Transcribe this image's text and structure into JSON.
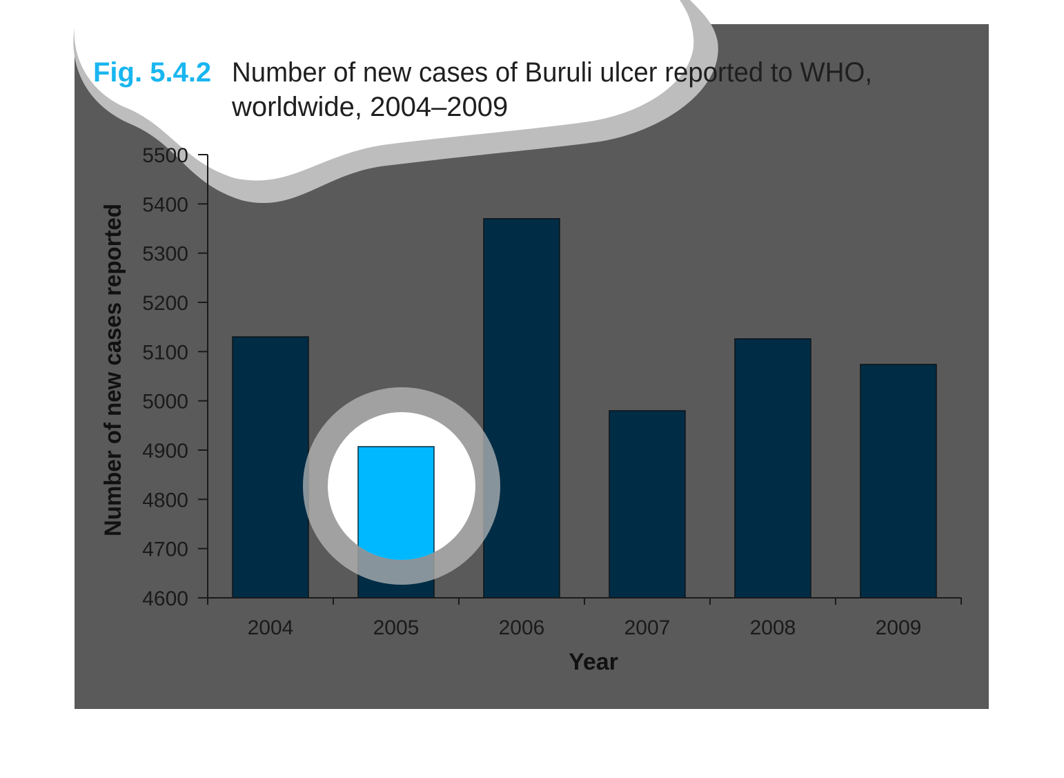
{
  "figure": {
    "label": "Fig. 5.4.2",
    "title_line1": "Number of new cases of Buruli ulcer reported to WHO,",
    "title_line2": "worldwide, 2004–2009"
  },
  "colors": {
    "panel": "#5a5a5a",
    "bar": "#002c45",
    "bar_highlight": "#00b8ff",
    "bubble": "#ffffff",
    "bubble_ring": "#bdbdbd",
    "axis": "#1a1a1a"
  },
  "chart_data": {
    "type": "bar",
    "categories": [
      "2004",
      "2005",
      "2006",
      "2007",
      "2008",
      "2009"
    ],
    "values": [
      5130,
      4907,
      5370,
      4980,
      5126,
      5074
    ],
    "highlighted_category": "2005",
    "xlabel": "Year",
    "ylabel": "Number of new cases reported",
    "ylim": [
      4600,
      5500
    ],
    "yticks": [
      "4600",
      "4700",
      "4800",
      "4900",
      "5000",
      "5100",
      "5200",
      "5300",
      "5400",
      "5500"
    ],
    "grid": false,
    "legend": "none"
  }
}
